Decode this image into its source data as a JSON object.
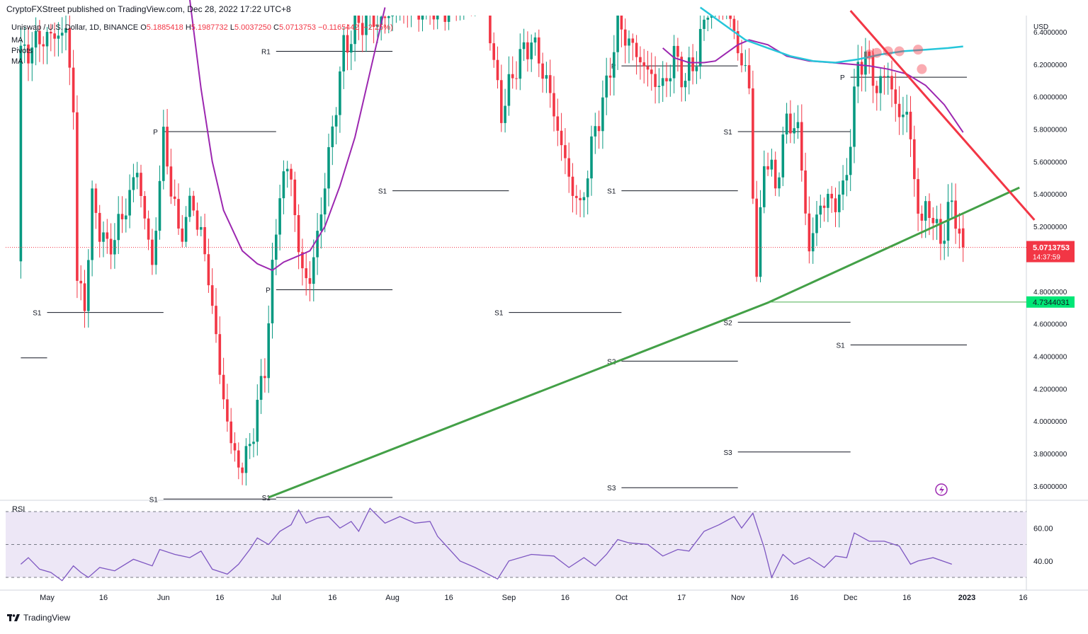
{
  "header": {
    "publisher": "CryptoFXStreet published on TradingView.com, Dec 28, 2022 17:22 UTC+8"
  },
  "legend": {
    "symbol": "Uniswap / U.S. Dollar, 1D, BINANCE",
    "o_key": "O",
    "o_val": "5.1885418",
    "h_key": "H",
    "h_val": "5.1987732",
    "l_key": "L",
    "l_val": "5.0037250",
    "c_key": "C",
    "c_val": "5.0713753",
    "change": "−0.1165442 (−2.25%)",
    "indicators": [
      "MA",
      "Pivots",
      "MA"
    ]
  },
  "price_badge": {
    "price": "5.0713753",
    "countdown": "14:37:59"
  },
  "support_badge": {
    "price": "4.7344031"
  },
  "rsi_label": "RSI",
  "footer": {
    "brand": "TradingView"
  },
  "colors": {
    "up": "#089981",
    "down": "#f23645",
    "ma_fast": "#9c27b0",
    "ma_slow": "#26c6da",
    "trend_up": "#43a047",
    "trend_down": "#f23645",
    "rsi": "#7e57c2",
    "rsi_band": "#ede7f6",
    "support": "#4caf50"
  },
  "chart_data": {
    "type": "candlestick",
    "title": "Uniswap / U.S. Dollar, 1D, BINANCE",
    "x_tick_labels": [
      "May",
      "16",
      "Jun",
      "16",
      "Jul",
      "16",
      "Aug",
      "16",
      "Sep",
      "16",
      "Oct",
      "17",
      "Nov",
      "16",
      "Dec",
      "16",
      "2023",
      "16"
    ],
    "x_tick_dates": [
      "2022-05-01",
      "2022-05-16",
      "2022-06-01",
      "2022-06-16",
      "2022-07-01",
      "2022-07-16",
      "2022-08-01",
      "2022-08-16",
      "2022-09-01",
      "2022-09-16",
      "2022-10-01",
      "2022-10-17",
      "2022-11-01",
      "2022-11-16",
      "2022-12-01",
      "2022-12-16",
      "2023-01-01",
      "2023-01-16"
    ],
    "y_unit": "USD",
    "y_ticks": [
      "6.4000000",
      "6.2000000",
      "6.0000000",
      "5.8000000",
      "5.6000000",
      "5.4000000",
      "5.2000000",
      "4.8000000",
      "4.6000000",
      "4.4000000",
      "4.2000000",
      "4.0000000",
      "3.8000000",
      "3.6000000"
    ],
    "ylim": [
      3.53,
      6.5
    ],
    "last_close": 5.0713753,
    "support_level": 4.7344031,
    "pivot_levels": [
      {
        "label": "S1",
        "from": "2022-05-01",
        "to": "2022-06-01",
        "value": 4.67
      },
      {
        "label": "",
        "from": "2022-04-24",
        "to": "2022-05-01",
        "value": 4.39
      },
      {
        "label": "P",
        "from": "2022-06-01",
        "to": "2022-07-01",
        "value": 5.785
      },
      {
        "label": "S1",
        "from": "2022-06-01",
        "to": "2022-07-01",
        "value": 3.52
      },
      {
        "label": "R1",
        "from": "2022-07-01",
        "to": "2022-08-01",
        "value": 6.28
      },
      {
        "label": "P",
        "from": "2022-07-01",
        "to": "2022-08-01",
        "value": 4.81
      },
      {
        "label": "S1",
        "from": "2022-07-01",
        "to": "2022-08-01",
        "value": 3.53
      },
      {
        "label": "S1",
        "from": "2022-08-01",
        "to": "2022-09-01",
        "value": 5.42
      },
      {
        "label": "S1",
        "from": "2022-09-01",
        "to": "2022-10-01",
        "value": 4.67
      },
      {
        "label": "P",
        "from": "2022-10-01",
        "to": "2022-11-01",
        "value": 6.19
      },
      {
        "label": "S1",
        "from": "2022-10-01",
        "to": "2022-11-01",
        "value": 5.42
      },
      {
        "label": "S2",
        "from": "2022-10-01",
        "to": "2022-11-01",
        "value": 4.37
      },
      {
        "label": "S3",
        "from": "2022-10-01",
        "to": "2022-11-01",
        "value": 3.59
      },
      {
        "label": "S1",
        "from": "2022-11-01",
        "to": "2022-12-01",
        "value": 5.785
      },
      {
        "label": "S2",
        "from": "2022-11-01",
        "to": "2022-12-01",
        "value": 4.61
      },
      {
        "label": "S3",
        "from": "2022-11-01",
        "to": "2022-12-01",
        "value": 3.81
      },
      {
        "label": "P",
        "from": "2022-12-01",
        "to": "2023-01-01",
        "value": 6.12
      },
      {
        "label": "S1",
        "from": "2022-12-01",
        "to": "2023-01-01",
        "value": 4.47
      }
    ],
    "trendlines": [
      {
        "name": "ascending support",
        "color": "#43a047",
        "points": [
          [
            "2022-06-29",
            3.53
          ],
          [
            "2022-11-09",
            4.73
          ],
          [
            "2023-01-15",
            5.44
          ]
        ]
      },
      {
        "name": "descending resistance",
        "color": "#f23645",
        "points": [
          [
            "2022-12-01",
            6.53
          ],
          [
            "2023-01-19",
            5.24
          ]
        ]
      }
    ],
    "rsi": {
      "ticks": [
        "60.00",
        "40.00"
      ],
      "band": [
        30,
        70
      ],
      "values": [
        [
          38,
          "2022-04-24"
        ],
        [
          42,
          "2022-04-26"
        ],
        [
          35,
          "2022-04-29"
        ],
        [
          33,
          "2022-05-02"
        ],
        [
          28,
          "2022-05-05"
        ],
        [
          37,
          "2022-05-08"
        ],
        [
          33,
          "2022-05-10"
        ],
        [
          30,
          "2022-05-12"
        ],
        [
          36,
          "2022-05-15"
        ],
        [
          34,
          "2022-05-19"
        ],
        [
          41,
          "2022-05-24"
        ],
        [
          37,
          "2022-05-29"
        ],
        [
          47,
          "2022-05-31"
        ],
        [
          44,
          "2022-06-04"
        ],
        [
          42,
          "2022-06-08"
        ],
        [
          46,
          "2022-06-11"
        ],
        [
          35,
          "2022-06-14"
        ],
        [
          32,
          "2022-06-18"
        ],
        [
          38,
          "2022-06-21"
        ],
        [
          47,
          "2022-06-24"
        ],
        [
          54,
          "2022-06-26"
        ],
        [
          50,
          "2022-06-29"
        ],
        [
          58,
          "2022-07-02"
        ],
        [
          62,
          "2022-07-05"
        ],
        [
          71,
          "2022-07-07"
        ],
        [
          63,
          "2022-07-09"
        ],
        [
          66,
          "2022-07-12"
        ],
        [
          67,
          "2022-07-15"
        ],
        [
          60,
          "2022-07-18"
        ],
        [
          64,
          "2022-07-21"
        ],
        [
          58,
          "2022-07-23"
        ],
        [
          72,
          "2022-07-26"
        ],
        [
          63,
          "2022-07-30"
        ],
        [
          67,
          "2022-08-03"
        ],
        [
          63,
          "2022-08-07"
        ],
        [
          64,
          "2022-08-11"
        ],
        [
          55,
          "2022-08-13"
        ],
        [
          40,
          "2022-08-19"
        ],
        [
          36,
          "2022-08-23"
        ],
        [
          29,
          "2022-08-29"
        ],
        [
          40,
          "2022-09-01"
        ],
        [
          44,
          "2022-09-07"
        ],
        [
          43,
          "2022-09-13"
        ],
        [
          36,
          "2022-09-17"
        ],
        [
          42,
          "2022-09-21"
        ],
        [
          37,
          "2022-09-24"
        ],
        [
          44,
          "2022-09-27"
        ],
        [
          53,
          "2022-09-30"
        ],
        [
          51,
          "2022-10-03"
        ],
        [
          50,
          "2022-10-08"
        ],
        [
          43,
          "2022-10-12"
        ],
        [
          47,
          "2022-10-16"
        ],
        [
          46,
          "2022-10-19"
        ],
        [
          58,
          "2022-10-23"
        ],
        [
          62,
          "2022-10-27"
        ],
        [
          67,
          "2022-10-31"
        ],
        [
          60,
          "2022-11-02"
        ],
        [
          69,
          "2022-11-05"
        ],
        [
          48,
          "2022-11-08"
        ],
        [
          30,
          "2022-11-10"
        ],
        [
          44,
          "2022-11-13"
        ],
        [
          38,
          "2022-11-16"
        ],
        [
          42,
          "2022-11-20"
        ],
        [
          36,
          "2022-11-24"
        ],
        [
          43,
          "2022-11-27"
        ],
        [
          42,
          "2022-11-30"
        ],
        [
          57,
          "2022-12-02"
        ],
        [
          52,
          "2022-12-06"
        ],
        [
          52,
          "2022-12-10"
        ],
        [
          49,
          "2022-12-14"
        ],
        [
          38,
          "2022-12-17"
        ],
        [
          40,
          "2022-12-19"
        ],
        [
          42,
          "2022-12-23"
        ],
        [
          38,
          "2022-12-28"
        ]
      ]
    }
  }
}
